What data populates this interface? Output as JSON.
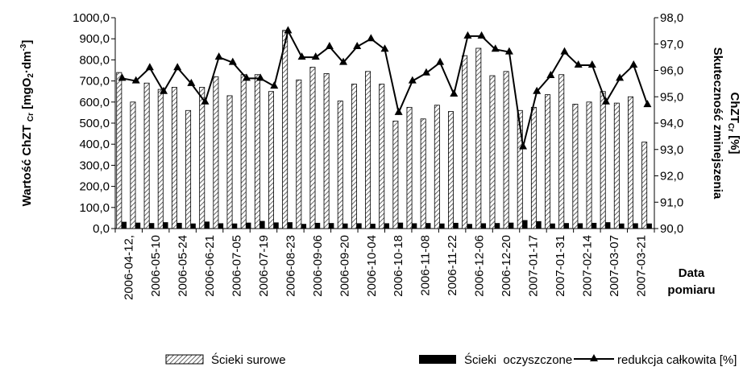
{
  "chart_data": {
    "type": "bar",
    "ylabel": "Wartość ChZT Cr [mgO2·dm-3]",
    "ylabel_parts": {
      "a": "Wartość ChZT",
      "b": "Cr",
      "c": "[mgO",
      "d": "2",
      "e": "·dm",
      "f": "-3",
      "g": "]"
    },
    "y2label_line1": "Skuteczność zminejszenia",
    "y2label_line2_main": "ChZT",
    "y2label_line2_sub": "Cr",
    "y2label_line2_tail": " [%]",
    "xlabel_line1": "Data",
    "xlabel_line2": "pomiaru",
    "ylim": [
      0,
      1000
    ],
    "y2lim": [
      90,
      98
    ],
    "y_ticks": [
      "0,0",
      "100,0",
      "200,0",
      "300,0",
      "400,0",
      "500,0",
      "600,0",
      "700,0",
      "800,0",
      "900,0",
      "1000,0"
    ],
    "y2_ticks": [
      "90,0",
      "91,0",
      "92,0",
      "93,0",
      "94,0",
      "95,0",
      "96,0",
      "97,0",
      "98,0"
    ],
    "x_tick_labels": [
      "2006-04-12,",
      "2006-05-10",
      "2006-05-24",
      "2006-06-21",
      "2006-07-05",
      "2006-07-19",
      "2006-08-23",
      "2006-09-06",
      "2006-09-20",
      "2006-10-04",
      "2006-10-18",
      "2006-11-08",
      "2006-11-22",
      "2006-12-06",
      "2006-12-20",
      "2007-01-17",
      "2007-01-31",
      "2007-02-14",
      "2007-03-07",
      "2007-03-21"
    ],
    "n_points": 39,
    "series": [
      {
        "name": "Ścieki surowe",
        "axis": "left",
        "kind": "bar-hatched",
        "values": [
          740,
          600,
          690,
          660,
          670,
          560,
          670,
          720,
          630,
          730,
          730,
          650,
          940,
          705,
          765,
          735,
          605,
          685,
          745,
          685,
          510,
          575,
          520,
          585,
          555,
          820,
          855,
          725,
          745,
          560,
          575,
          635,
          730,
          590,
          600,
          650,
          595,
          625,
          410
        ]
      },
      {
        "name": "Ścieki  oczyszczone",
        "axis": "left",
        "kind": "bar-solid",
        "values": [
          32,
          28,
          26,
          30,
          27,
          24,
          33,
          25,
          24,
          28,
          36,
          29,
          30,
          22,
          27,
          26,
          24,
          25,
          23,
          25,
          28,
          25,
          26,
          24,
          27,
          22,
          25,
          26,
          28,
          40,
          35,
          24,
          26,
          25,
          27,
          30,
          24,
          25,
          24
        ]
      },
      {
        "name": "redukcja całkowita [%]",
        "axis": "right",
        "kind": "line-triangle",
        "values": [
          95.7,
          95.6,
          96.1,
          95.2,
          96.1,
          95.5,
          94.8,
          96.5,
          96.3,
          95.7,
          95.7,
          95.4,
          97.5,
          96.5,
          96.5,
          96.9,
          96.3,
          96.9,
          97.2,
          96.8,
          94.4,
          95.6,
          95.9,
          96.3,
          95.1,
          97.3,
          97.3,
          96.8,
          96.7,
          93.1,
          95.2,
          95.8,
          96.7,
          96.2,
          96.2,
          94.8,
          95.7,
          96.2,
          94.7
        ]
      }
    ],
    "legend_position": "bottom",
    "grid": false
  }
}
